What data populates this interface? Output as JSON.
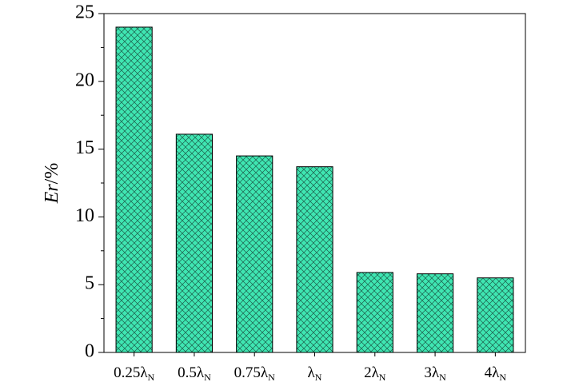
{
  "chart_data": {
    "type": "bar",
    "y_label": "Er/%",
    "categories": [
      "0.25λN",
      "0.5λN",
      "0.75λN",
      "λN",
      "2λN",
      "3λN",
      "4λN"
    ],
    "values": [
      24.0,
      16.1,
      14.5,
      13.7,
      5.9,
      5.8,
      5.5
    ],
    "color": "#3fe6b2",
    "hatch_color": "#1d5c4a",
    "ylim": [
      0,
      25
    ],
    "yticks": [
      0,
      5,
      10,
      15,
      20,
      25
    ],
    "grid": false
  }
}
